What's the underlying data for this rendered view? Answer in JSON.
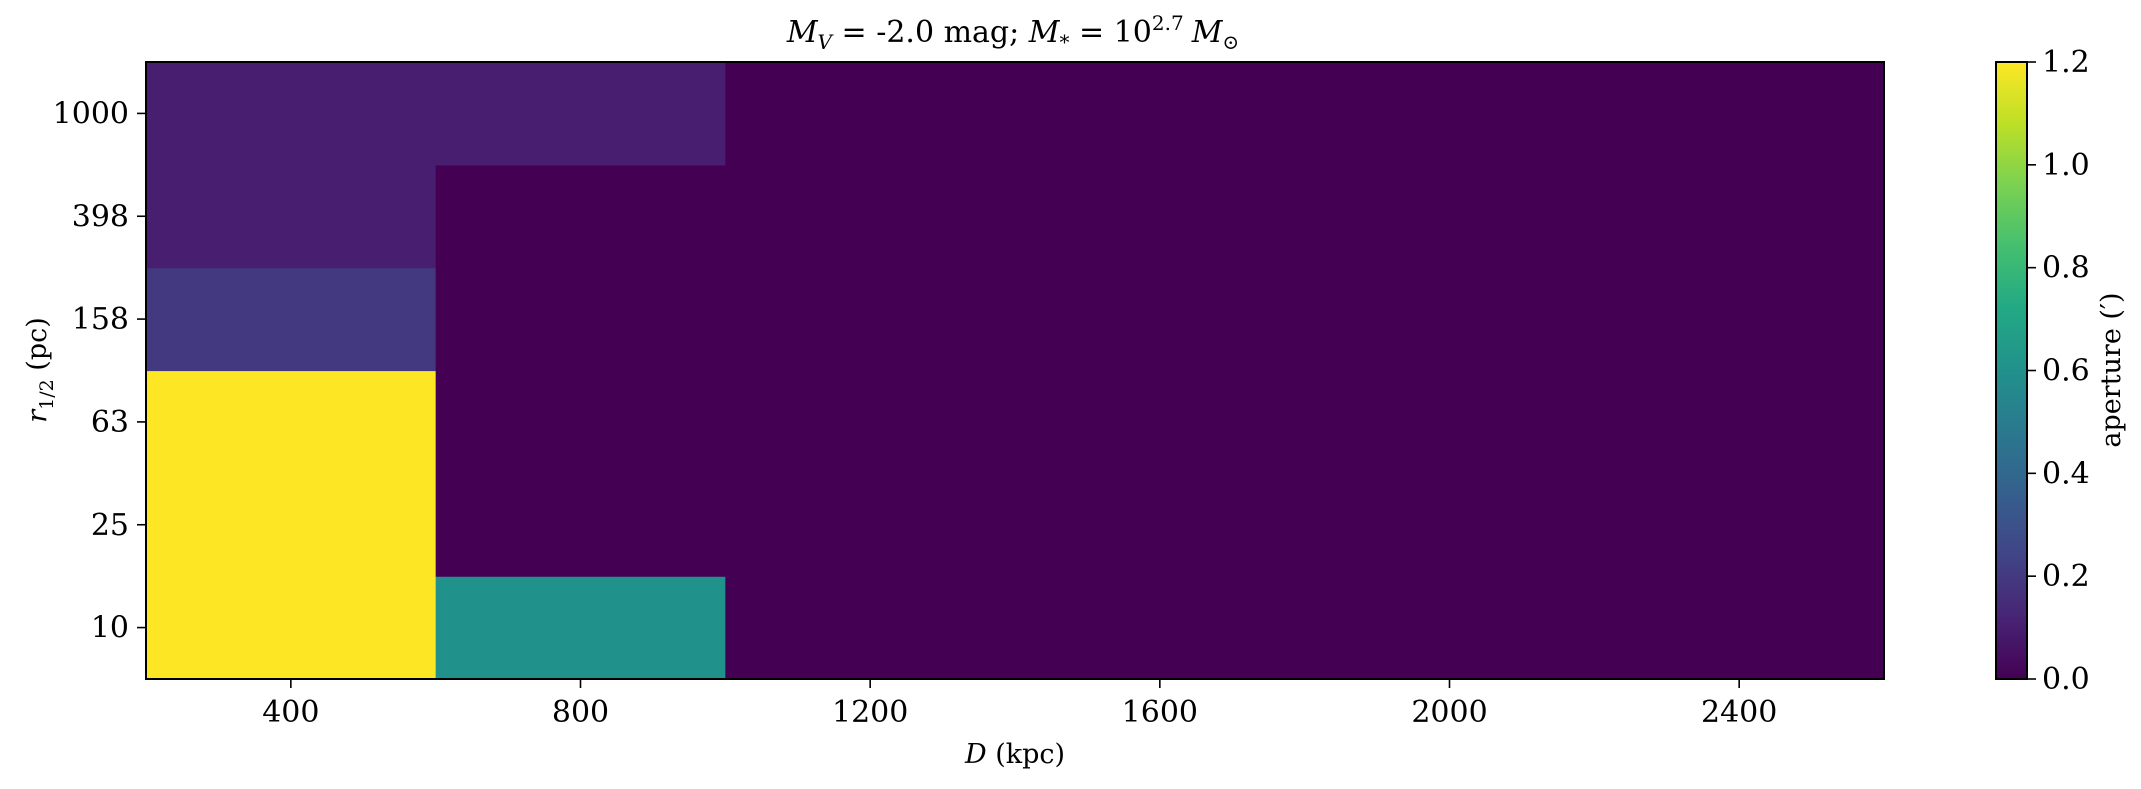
{
  "chart_data": {
    "type": "heatmap",
    "title": "M_V = -2.0 mag; M_* = 10^2.7 M_⊙",
    "title_parts": {
      "mv_var": "M",
      "mv_sub": "V",
      "mv_eq": " = -2.0 mag; ",
      "ms_var": "M",
      "ms_sub": "*",
      "ms_eq": " = 10",
      "ms_exp": "2.7",
      "msun_var": "M",
      "msun_sub": "⊙"
    },
    "xlabel": "D (kpc)",
    "xlabel_parts": {
      "var": "D",
      "unit": " (kpc)"
    },
    "ylabel": "r_1/2 (pc)",
    "ylabel_parts": {
      "var": "r",
      "sub": "1/2",
      "unit": " (pc)"
    },
    "x_edges": [
      200,
      600,
      1000,
      1400,
      1800,
      2200,
      2600
    ],
    "x_ticks": [
      400,
      800,
      1200,
      1600,
      2000,
      2400
    ],
    "x_tick_labels": [
      "400",
      "800",
      "1200",
      "1600",
      "2000",
      "2400"
    ],
    "y_categories": [
      "10",
      "25",
      "63",
      "158",
      "398",
      "1000"
    ],
    "z": [
      [
        1.2,
        0.6,
        0.0,
        0.0,
        0.0,
        0.0
      ],
      [
        1.2,
        0.0,
        0.0,
        0.0,
        0.0,
        0.0
      ],
      [
        1.2,
        0.0,
        0.0,
        0.0,
        0.0,
        0.0
      ],
      [
        0.2,
        0.0,
        0.0,
        0.0,
        0.0,
        0.0
      ],
      [
        0.1,
        0.0,
        0.0,
        0.0,
        0.0,
        0.0
      ],
      [
        0.1,
        0.1,
        0.0,
        0.0,
        0.0,
        0.0
      ]
    ],
    "z_note": "z[row][col]; rows follow y_categories (10 to 1000), cols follow x_edges bins",
    "colorbar": {
      "label": "aperture (′)",
      "range": [
        0.0,
        1.2
      ],
      "ticks": [
        "0.0",
        "0.2",
        "0.4",
        "0.6",
        "0.8",
        "1.0",
        "1.2"
      ],
      "colormap": "viridis"
    },
    "grid": false
  }
}
